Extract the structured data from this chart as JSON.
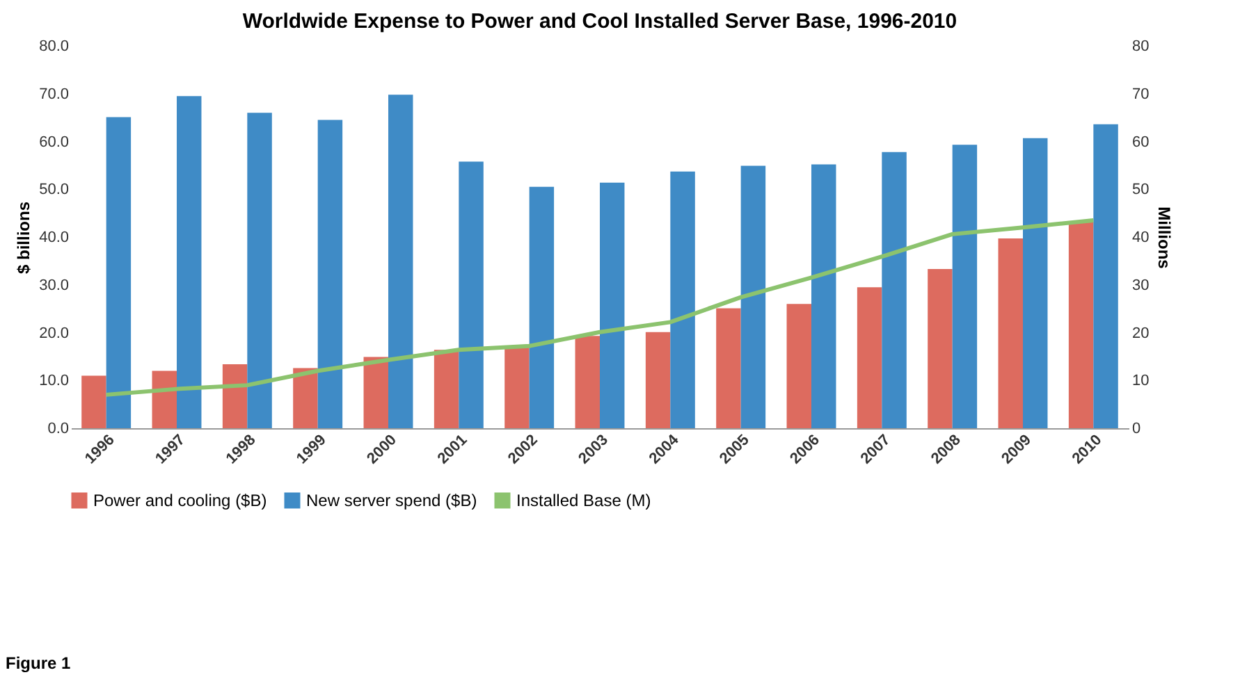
{
  "chart_data": {
    "type": "bar",
    "title": "Worldwide Expense to Power and Cool Installed Server Base, 1996-2010",
    "ylabel": "$ billions",
    "y2label": "Millions",
    "categories": [
      "1996",
      "1997",
      "1998",
      "1999",
      "2000",
      "2001",
      "2002",
      "2003",
      "2004",
      "2005",
      "2006",
      "2007",
      "2008",
      "2009",
      "2010"
    ],
    "series": [
      {
        "name": "Power and cooling ($B)",
        "color": "#dd6b5f",
        "values": [
          11,
          12,
          13.4,
          12.6,
          14.9,
          16.4,
          17,
          19.3,
          20.1,
          25.1,
          26,
          29.5,
          33.3,
          39.7,
          43.2
        ]
      },
      {
        "name": "New server spend ($B)",
        "color": "#3f8bc6",
        "values": [
          65.1,
          69.5,
          66,
          64.5,
          69.8,
          55.8,
          50.5,
          51.4,
          53.7,
          54.9,
          55.2,
          57.8,
          59.3,
          60.7,
          63.6
        ]
      },
      {
        "name": "Installed Base (M)",
        "type": "line",
        "axis": "y2",
        "color": "#8cc36e",
        "values": [
          7,
          8.2,
          9,
          12,
          14.3,
          16.4,
          17.2,
          20.1,
          22.2,
          27.4,
          31.5,
          35.9,
          40.6,
          42,
          43.5
        ]
      }
    ],
    "ylim": [
      0,
      80
    ],
    "yticks": [
      {
        "value": 0,
        "label": "0.0"
      },
      {
        "value": 10,
        "label": "10.0"
      },
      {
        "value": 20,
        "label": "20.0"
      },
      {
        "value": 30,
        "label": "30.0"
      },
      {
        "value": 40,
        "label": "40.0"
      },
      {
        "value": 50,
        "label": "50.0"
      },
      {
        "value": 60,
        "label": "60.0"
      },
      {
        "value": 70,
        "label": "70.0"
      },
      {
        "value": 80,
        "label": "80.0"
      }
    ],
    "y2lim": [
      0,
      80
    ],
    "y2ticks": [
      0,
      10,
      20,
      30,
      40,
      50,
      60,
      70,
      80
    ],
    "grid": false,
    "legend": "bottom",
    "marker": "none",
    "line_style": "solid",
    "annotations": [
      "Figure 1"
    ]
  }
}
